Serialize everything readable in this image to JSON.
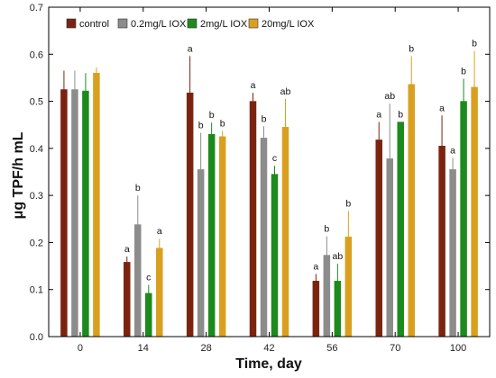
{
  "chart_data": {
    "type": "bar",
    "xlabel": "Time, day",
    "ylabel": "μg TPF/h mL",
    "ylim": [
      0,
      0.7
    ],
    "yticks": [
      "0.0",
      "0.1",
      "0.2",
      "0.3",
      "0.4",
      "0.5",
      "0.6",
      "0.7"
    ],
    "categories": [
      "0",
      "14",
      "28",
      "42",
      "56",
      "70",
      "100"
    ],
    "legend_position": "top-left",
    "series": [
      {
        "name": "control",
        "color": "#7a2410",
        "values": [
          0.525,
          0.158,
          0.518,
          0.5,
          0.118,
          0.418,
          0.405
        ],
        "errors": [
          0.04,
          0.012,
          0.078,
          0.018,
          0.015,
          0.038,
          0.065
        ],
        "labels": [
          "",
          "a",
          "a",
          "a",
          "a",
          "a",
          "a"
        ]
      },
      {
        "name": "0.2mg/L IOX",
        "color": "#8c8c8c",
        "values": [
          0.525,
          0.238,
          0.355,
          0.422,
          0.173,
          0.378,
          0.355
        ],
        "errors": [
          0.04,
          0.062,
          0.078,
          0.025,
          0.04,
          0.117,
          0.025
        ],
        "labels": [
          "",
          "b",
          "b",
          "b",
          "b",
          "ab",
          "a"
        ]
      },
      {
        "name": "2mg/L IOX",
        "color": "#1d8a1d",
        "values": [
          0.522,
          0.092,
          0.43,
          0.345,
          0.118,
          0.456,
          0.5
        ],
        "errors": [
          0.038,
          0.018,
          0.025,
          0.018,
          0.037,
          0.0,
          0.048
        ],
        "labels": [
          "",
          "c",
          "b",
          "c",
          "ab",
          "b",
          "b"
        ]
      },
      {
        "name": "20mg/L IOX",
        "color": "#d9a020",
        "values": [
          0.56,
          0.188,
          0.425,
          0.445,
          0.212,
          0.536,
          0.53
        ],
        "errors": [
          0.012,
          0.02,
          0.012,
          0.06,
          0.055,
          0.06,
          0.077
        ],
        "labels": [
          "",
          "a",
          "b",
          "ab",
          "b",
          "b",
          "b"
        ]
      }
    ]
  }
}
